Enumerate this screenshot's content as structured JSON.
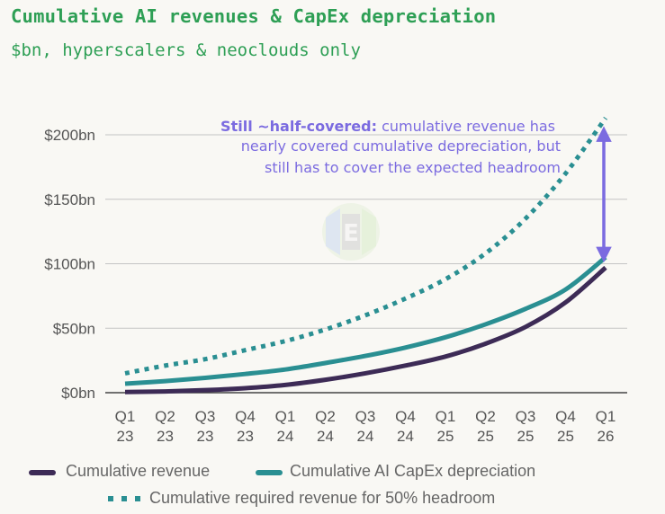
{
  "title": "Cumulative AI revenues & CapEx depreciation",
  "subtitle": "$bn, hyperscalers & neoclouds only",
  "colors": {
    "revenue": "#3d2b56",
    "depreciation": "#2a8f92",
    "required": "#2a8f92",
    "annotation": "#7b6be0",
    "title": "#2e9f55"
  },
  "chart_data": {
    "type": "line",
    "categories": [
      "Q1 23",
      "Q2 23",
      "Q3 23",
      "Q4 23",
      "Q1 24",
      "Q2 24",
      "Q3 24",
      "Q4 24",
      "Q1 25",
      "Q2 25",
      "Q3 25",
      "Q4 25",
      "Q1 26"
    ],
    "x_tick_lines": [
      [
        "Q1",
        "23"
      ],
      [
        "Q2",
        "23"
      ],
      [
        "Q3",
        "23"
      ],
      [
        "Q4",
        "23"
      ],
      [
        "Q1",
        "24"
      ],
      [
        "Q2",
        "24"
      ],
      [
        "Q3",
        "24"
      ],
      [
        "Q4",
        "24"
      ],
      [
        "Q1",
        "25"
      ],
      [
        "Q2",
        "25"
      ],
      [
        "Q3",
        "25"
      ],
      [
        "Q4",
        "25"
      ],
      [
        "Q1",
        "26"
      ]
    ],
    "y_ticks": [
      0,
      50,
      100,
      150,
      200
    ],
    "y_tick_labels": [
      "$0bn",
      "$50bn",
      "$100bn",
      "$150bn",
      "$200bn"
    ],
    "ylim": [
      0,
      225
    ],
    "grid": true,
    "legend_position": "bottom",
    "series": [
      {
        "name": "Cumulative revenue",
        "style": "solid",
        "values": [
          0.5,
          1,
          2,
          3.5,
          6,
          10,
          15,
          21,
          28,
          38,
          51,
          70,
          97
        ]
      },
      {
        "name": "Cumulative AI CapEx depreciation",
        "style": "solid",
        "values": [
          7,
          9,
          11.5,
          14.5,
          18,
          23,
          28.5,
          35,
          43,
          53,
          65,
          80,
          105
        ]
      },
      {
        "name": "Cumulative required revenue for 50% headroom",
        "style": "dotted",
        "values": [
          15,
          21,
          26,
          33,
          40,
          49,
          60,
          73,
          88,
          108,
          135,
          170,
          213
        ]
      }
    ],
    "annotation": {
      "bold": "Still ~half-covered:",
      "lines": [
        " cumulative revenue has",
        "nearly covered cumulative depreciation, but",
        "still has to cover the expected headroom"
      ],
      "arrow_from": 105,
      "arrow_to": 202
    }
  }
}
